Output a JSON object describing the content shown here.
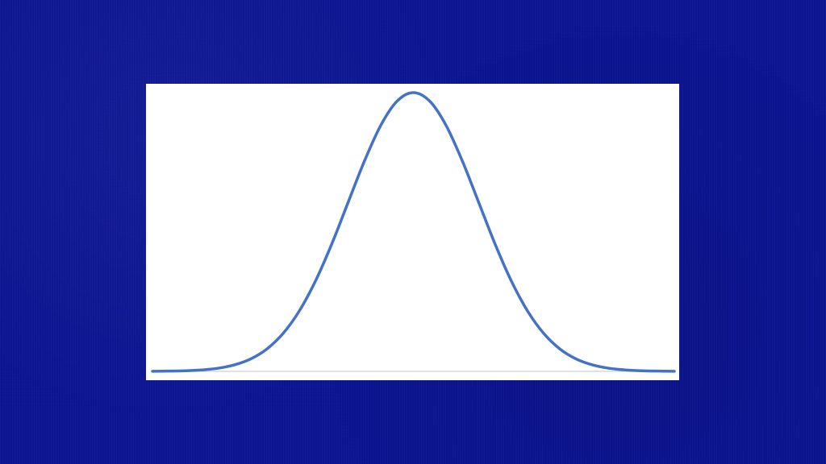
{
  "slide": {
    "background_color": "#0c1592"
  },
  "chart_data": {
    "type": "line",
    "title": "",
    "xlabel": "",
    "ylabel": "",
    "xlim": [
      -4,
      4
    ],
    "ylim": [
      0,
      0.4
    ],
    "grid": false,
    "legend": "none",
    "line_color": "#4472c4",
    "axis_color": "#d9d9d9",
    "series": [
      {
        "x": [
          -4.0,
          -3.75,
          -3.5,
          -3.25,
          -3.0,
          -2.75,
          -2.5,
          -2.25,
          -2.0,
          -1.75,
          -1.5,
          -1.25,
          -1.0,
          -0.75,
          -0.5,
          -0.25,
          0.0,
          0.25,
          0.5,
          0.75,
          1.0,
          1.25,
          1.5,
          1.75,
          2.0,
          2.25,
          2.5,
          2.75,
          3.0,
          3.25,
          3.5,
          3.75,
          4.0
        ],
        "values": [
          0.0001,
          0.0004,
          0.0009,
          0.002,
          0.0044,
          0.0091,
          0.0175,
          0.0317,
          0.054,
          0.0863,
          0.1295,
          0.1826,
          0.242,
          0.3011,
          0.3521,
          0.3867,
          0.3989,
          0.3867,
          0.3521,
          0.3011,
          0.242,
          0.1826,
          0.1295,
          0.0863,
          0.054,
          0.0317,
          0.0175,
          0.0091,
          0.0044,
          0.002,
          0.0009,
          0.0004,
          0.0001
        ]
      }
    ]
  }
}
